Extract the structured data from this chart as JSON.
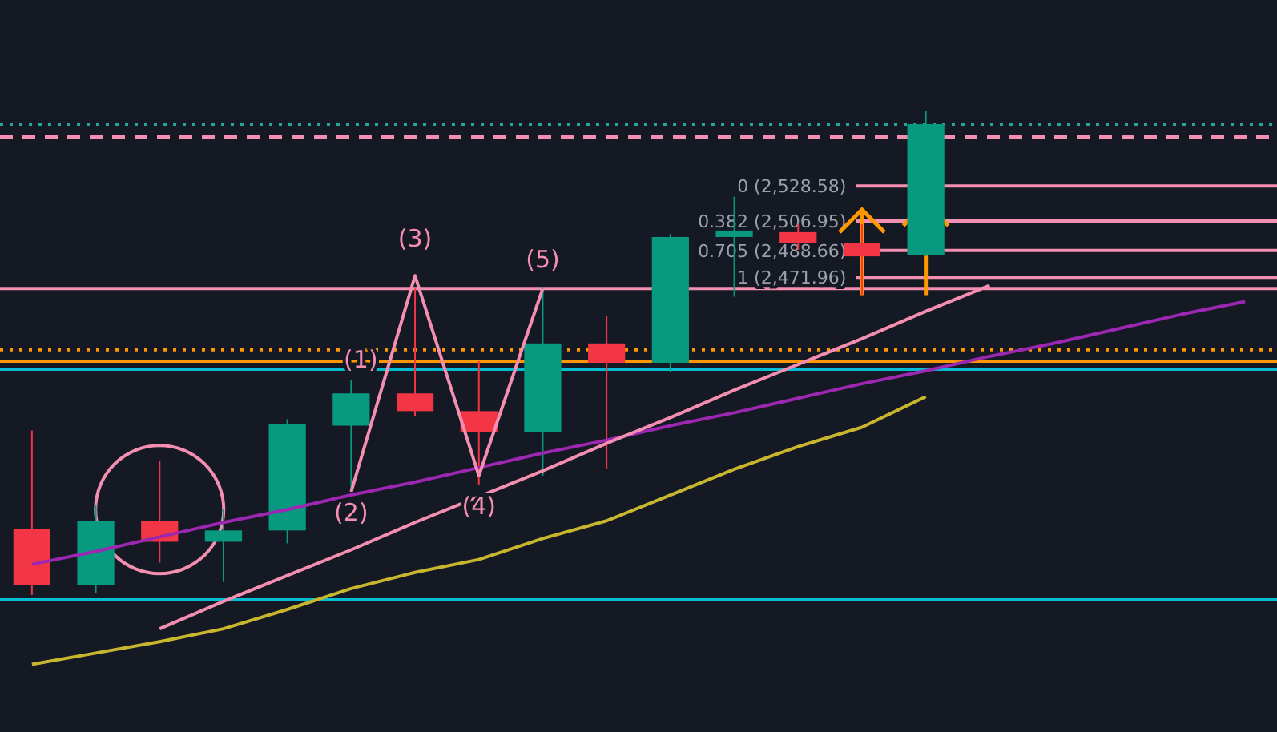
{
  "chart_data": {
    "type": "candlestick",
    "categories": [
      null,
      null,
      null,
      null,
      null,
      null,
      null,
      null,
      null,
      null,
      null,
      null,
      null,
      null,
      null,
      null,
      null,
      null,
      null,
      null
    ],
    "ohlc": [
      [
        2316,
        2377,
        2275,
        2281
      ],
      [
        2281,
        2331,
        2276,
        2321
      ],
      [
        2321,
        2358,
        2295,
        2308
      ],
      [
        2308,
        2328,
        2283,
        2315
      ],
      [
        2315,
        2384,
        2307,
        2381
      ],
      [
        2380,
        2408,
        2339,
        2400
      ],
      [
        2400,
        2465,
        2386,
        2389
      ],
      [
        2389,
        2420,
        2343,
        2376
      ],
      [
        2376,
        2466,
        2349,
        2431
      ],
      [
        2431,
        2448,
        2353,
        2419
      ],
      [
        2419,
        2499,
        2413,
        2497
      ],
      [
        2497,
        2522,
        2460,
        2501
      ],
      [
        2500,
        2505,
        2489,
        2493
      ],
      [
        2493,
        2505,
        2461,
        2485
      ],
      [
        2486,
        2575,
        2485,
        2567
      ],
      null,
      null,
      null,
      null,
      null
    ],
    "colors": [
      "#f23645",
      "#089981",
      "#f23645",
      "#089981",
      "#089981",
      "#089981",
      "#f23645",
      "#f23645",
      "#089981",
      "#f23645",
      "#089981",
      "#089981",
      "#f23645",
      "#f23645",
      "#089981",
      null,
      null,
      null,
      null,
      null
    ],
    "series": [
      {
        "type": "line",
        "color": "#c9b62f",
        "values": [
          2232,
          2239,
          2246,
          2254,
          2266,
          2279,
          2289,
          2297,
          2310,
          2321,
          2337,
          2353,
          2367,
          2379,
          2398,
          null,
          null,
          null,
          null,
          null
        ]
      },
      {
        "type": "line",
        "color": "#9c27b0",
        "values": [
          2294,
          2302,
          2311,
          2320,
          2328,
          2337,
          2345,
          2354,
          2363,
          2371,
          2380,
          2388,
          2397,
          2406,
          2414,
          2423,
          2431,
          2440,
          2449,
          2457
        ]
      },
      {
        "type": "line",
        "color": "#f48fb1",
        "values": [
          null,
          null,
          2254,
          2271,
          2287,
          2303,
          2320,
          2336,
          2352,
          2369,
          2385,
          2402,
          2418,
          2434,
          2451,
          2467,
          null,
          null,
          null,
          null
        ]
      },
      {
        "type": "line",
        "color": "#f48fb1",
        "values": [
          null,
          null,
          null,
          null,
          null,
          2339,
          2473,
          2349,
          2465,
          null,
          null,
          null,
          null,
          null,
          null,
          null,
          null,
          null,
          null,
          null
        ]
      }
    ],
    "ylim": [
      2190,
      2644
    ],
    "tick_labels": false,
    "ref_lines": [
      {
        "axis": "y",
        "value": 2415,
        "color": "#00bcd4",
        "line_style": "solid"
      },
      {
        "axis": "y",
        "value": 2272,
        "color": "#00bcd4",
        "line_style": "solid"
      },
      {
        "axis": "y",
        "value": 2420,
        "color": "#ff9800",
        "line_style": "solid"
      },
      {
        "axis": "y",
        "value": 2427,
        "color": "#ff9800",
        "line_style": "dotted"
      },
      {
        "axis": "y",
        "value": 2559,
        "color": "#f48fb1",
        "line_style": "dashed"
      },
      {
        "axis": "y",
        "value": 2567,
        "color": "#26a69a",
        "line_style": "dotted"
      },
      {
        "axis": "y",
        "value": 2465,
        "color": "#f48fb1",
        "line_style": "solid"
      },
      {
        "axis": "y",
        "value": 2528.58,
        "label": "0 (2,528.58)",
        "color": "#f48fb1",
        "line_style": "solid"
      },
      {
        "axis": "y",
        "value": 2506.95,
        "label": "0.382 (2,506.95)",
        "color": "#f48fb1",
        "line_style": "solid"
      },
      {
        "axis": "y",
        "value": 2488.66,
        "label": "0.705 (2,488.66)",
        "color": "#f48fb1",
        "line_style": "solid"
      },
      {
        "axis": "y",
        "value": 2471.96,
        "label": "1 (2,471.96)",
        "color": "#f48fb1",
        "line_style": "solid"
      }
    ],
    "annotations": [
      {
        "text": "(3)",
        "y": 2473
      },
      {
        "text": "(5)",
        "y": 2466
      },
      {
        "text": "(2)",
        "y": 2339
      },
      {
        "text": "(4)",
        "y": 2343
      },
      "(1)"
    ]
  }
}
